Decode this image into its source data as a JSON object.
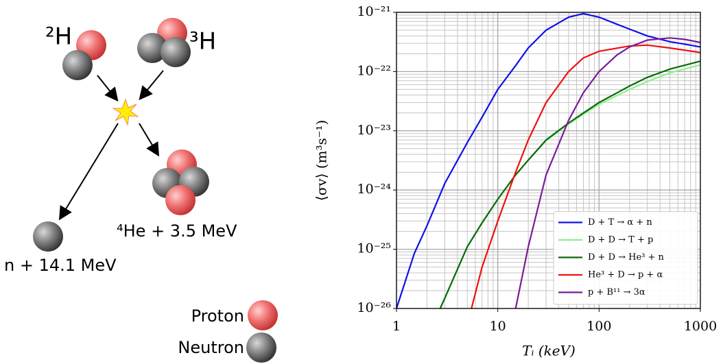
{
  "diagram": {
    "deuterium": "²H",
    "tritium": "³H",
    "helium": "⁴He + 3.5 MeV",
    "neutron_out": "n + 14.1 MeV",
    "legend_proton": "Proton",
    "legend_neutron": "Neutron"
  },
  "chart_data": {
    "type": "line",
    "x_label": "Tᵢ (keV)",
    "y_label": "⟨σv⟩ (m³s⁻¹)",
    "xscale": "log",
    "yscale": "log",
    "grid": true,
    "legend": "lower right",
    "xlim": [
      1,
      1000
    ],
    "xticks": [
      1,
      10,
      100,
      1000
    ],
    "ylim": [
      1e-26,
      1e-21
    ],
    "yticks": [
      {
        "value": 1e-26,
        "label": "10⁻²⁶"
      },
      {
        "value": 1e-25,
        "label": "10⁻²⁵"
      },
      {
        "value": 1e-24,
        "label": "10⁻²⁴"
      },
      {
        "value": 1e-23,
        "label": "10⁻²³"
      },
      {
        "value": 1e-22,
        "label": "10⁻²²"
      },
      {
        "value": 1e-21,
        "label": "10⁻²¹"
      }
    ],
    "xminor": [
      2,
      3,
      4,
      5,
      6,
      7,
      8,
      9,
      20,
      30,
      40,
      50,
      60,
      70,
      80,
      90,
      200,
      300,
      400,
      500,
      600,
      700,
      800,
      900
    ],
    "yminor": [
      2e-26,
      3e-26,
      4e-26,
      5e-26,
      6e-26,
      7e-26,
      8e-26,
      9e-26,
      2e-25,
      3e-25,
      4e-25,
      5e-25,
      6e-25,
      7e-25,
      8e-25,
      9e-25,
      2e-24,
      3e-24,
      4e-24,
      5e-24,
      6e-24,
      7e-24,
      8e-24,
      9e-24,
      2e-23,
      3e-23,
      4e-23,
      5e-23,
      6e-23,
      7e-23,
      8e-23,
      9e-23,
      2e-22,
      3e-22,
      4e-22,
      5e-22,
      6e-22,
      7e-22,
      8e-22,
      9e-22
    ],
    "series": [
      {
        "name": "D + T → α + n",
        "color": "#1010e8",
        "x": [
          1,
          1.5,
          2,
          3,
          5,
          7,
          10,
          15,
          20,
          30,
          50,
          70,
          100,
          150,
          200,
          300,
          500,
          700,
          1000
        ],
        "values": [
          1e-26,
          8.5e-26,
          2.5e-25,
          1.3e-24,
          6.3e-24,
          1.7e-23,
          5e-23,
          1.26e-22,
          2.5e-22,
          5e-22,
          8.3e-22,
          9.5e-22,
          8.3e-22,
          6.3e-22,
          5.2e-22,
          4e-22,
          3.2e-22,
          2.9e-22,
          2.6e-22
        ]
      },
      {
        "name": "D + D → T + p",
        "color": "#90ee90",
        "x": [
          2.7,
          3,
          5,
          7,
          10,
          15,
          20,
          30,
          50,
          70,
          100,
          200,
          300,
          500,
          1000
        ],
        "values": [
          1e-26,
          1.5e-26,
          1.1e-25,
          2.8e-25,
          7e-25,
          1.8e-24,
          3.2e-24,
          6.8e-24,
          1.3e-23,
          1.9e-23,
          2.8e-23,
          5e-23,
          6.8e-23,
          9.5e-23,
          1.3e-22
        ]
      },
      {
        "name": "D + D → He³ + n",
        "color": "#0a6a0a",
        "x": [
          2.7,
          3,
          5,
          7,
          10,
          15,
          20,
          30,
          50,
          70,
          100,
          200,
          300,
          500,
          1000
        ],
        "values": [
          1e-26,
          1.5e-26,
          1.1e-25,
          2.8e-25,
          7e-25,
          1.8e-24,
          3.2e-24,
          7e-24,
          1.35e-23,
          2e-23,
          3e-23,
          5.7e-23,
          8e-23,
          1.1e-22,
          1.5e-22
        ]
      },
      {
        "name": "He³ + D → p + α",
        "color": "#ee1010",
        "x": [
          5.5,
          7,
          10,
          15,
          20,
          30,
          50,
          70,
          100,
          200,
          300,
          500,
          1000
        ],
        "values": [
          1e-26,
          5e-26,
          3e-25,
          2e-24,
          7e-24,
          3e-23,
          1e-22,
          1.7e-22,
          2.2e-22,
          2.7e-22,
          2.8e-22,
          2.5e-22,
          2.1e-22
        ]
      },
      {
        "name": "p + B¹¹ → 3α",
        "color": "#7a1a9a",
        "x": [
          15,
          20,
          30,
          50,
          70,
          100,
          150,
          200,
          300,
          500,
          700,
          1000
        ],
        "values": [
          1e-26,
          1.1e-25,
          1.8e-24,
          1.5e-23,
          4.4e-23,
          1e-22,
          1.9e-22,
          2.6e-22,
          3.4e-22,
          3.7e-22,
          3.5e-22,
          3.1e-22
        ]
      }
    ]
  }
}
